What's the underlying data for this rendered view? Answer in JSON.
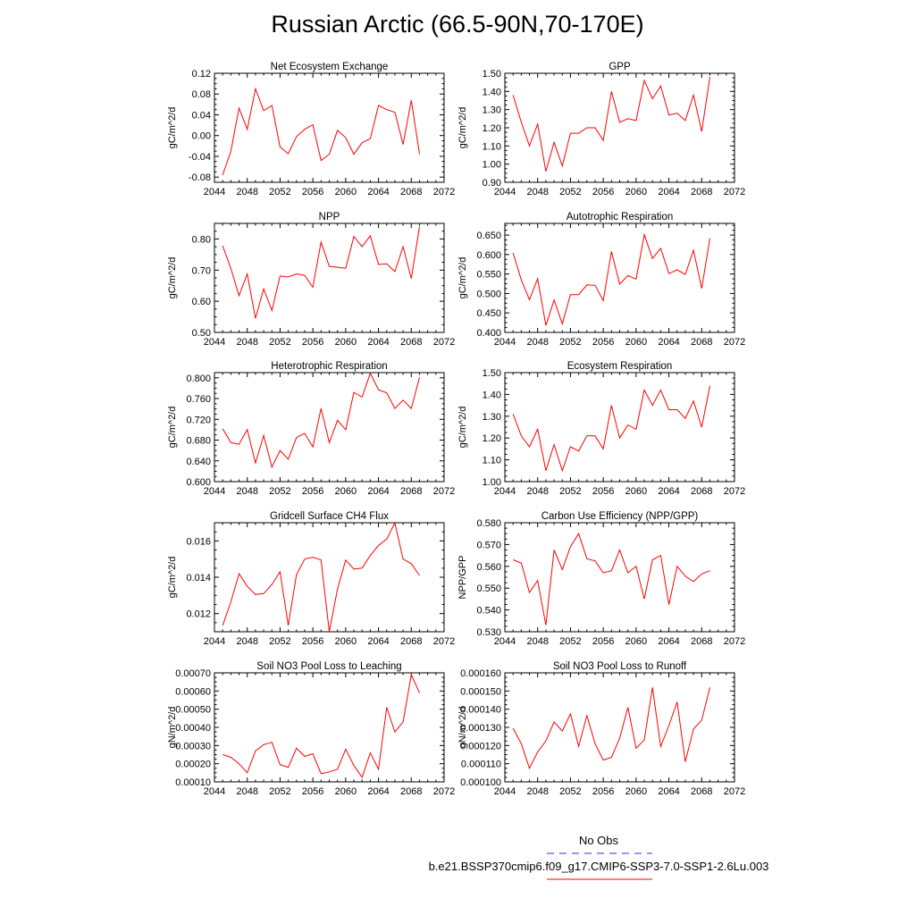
{
  "title": "Russian Arctic (66.5-90N,70-170E)",
  "colors": {
    "series": "#ff0000",
    "obs": "#3333cc",
    "axis": "#000000"
  },
  "legend": {
    "obs_label": "No Obs",
    "run_label": "b.e21.BSSP370cmip6.f09_g17.CMIP6-SSP3-7.0-SSP1-2.6Lu.003"
  },
  "chart_data": [
    {
      "type": "line",
      "title": "Net Ecosystem Exchange",
      "ylabel": "gC/m^2/d",
      "xlabel": "",
      "xlim": [
        2044,
        2072
      ],
      "ylim": [
        -0.09,
        0.12
      ],
      "xticks": [
        2044,
        2048,
        2052,
        2056,
        2060,
        2064,
        2068,
        2072
      ],
      "yticks": [
        -0.08,
        -0.04,
        0.0,
        0.04,
        0.08,
        0.12
      ],
      "ydec": 2,
      "x": [
        2045,
        2046,
        2047,
        2048,
        2049,
        2050,
        2051,
        2052,
        2053,
        2054,
        2055,
        2056,
        2057,
        2058,
        2059,
        2060,
        2061,
        2062,
        2063,
        2064,
        2065,
        2066,
        2067,
        2068,
        2069
      ],
      "series": [
        {
          "values": [
            -0.076,
            -0.03,
            0.053,
            0.012,
            0.09,
            0.048,
            0.058,
            -0.022,
            -0.035,
            -0.002,
            0.012,
            0.021,
            -0.048,
            -0.036,
            0.01,
            -0.004,
            -0.036,
            -0.014,
            -0.006,
            0.058,
            0.05,
            0.045,
            -0.017,
            0.068,
            -0.036
          ]
        }
      ]
    },
    {
      "type": "line",
      "title": "GPP",
      "ylabel": "gC/m^2/d",
      "xlabel": "",
      "xlim": [
        2044,
        2072
      ],
      "ylim": [
        0.9,
        1.5
      ],
      "xticks": [
        2044,
        2048,
        2052,
        2056,
        2060,
        2064,
        2068,
        2072
      ],
      "yticks": [
        0.9,
        1.0,
        1.1,
        1.2,
        1.3,
        1.4,
        1.5
      ],
      "ydec": 2,
      "x": [
        2045,
        2046,
        2047,
        2048,
        2049,
        2050,
        2051,
        2052,
        2053,
        2054,
        2055,
        2056,
        2057,
        2058,
        2059,
        2060,
        2061,
        2062,
        2063,
        2064,
        2065,
        2066,
        2067,
        2068,
        2069
      ],
      "series": [
        {
          "values": [
            1.38,
            1.23,
            1.1,
            1.22,
            0.96,
            1.12,
            0.99,
            1.17,
            1.17,
            1.2,
            1.2,
            1.13,
            1.4,
            1.23,
            1.25,
            1.24,
            1.46,
            1.36,
            1.43,
            1.27,
            1.28,
            1.24,
            1.38,
            1.18,
            1.48
          ]
        }
      ]
    },
    {
      "type": "line",
      "title": "NPP",
      "ylabel": "gC/m^2/d",
      "xlabel": "",
      "xlim": [
        2044,
        2072
      ],
      "ylim": [
        0.5,
        0.85
      ],
      "xticks": [
        2044,
        2048,
        2052,
        2056,
        2060,
        2064,
        2068,
        2072
      ],
      "yticks": [
        0.5,
        0.6,
        0.7,
        0.8
      ],
      "ydec": 2,
      "x": [
        2045,
        2046,
        2047,
        2048,
        2049,
        2050,
        2051,
        2052,
        2053,
        2054,
        2055,
        2056,
        2057,
        2058,
        2059,
        2060,
        2061,
        2062,
        2063,
        2064,
        2065,
        2066,
        2067,
        2068,
        2069
      ],
      "series": [
        {
          "values": [
            0.778,
            0.705,
            0.618,
            0.688,
            0.545,
            0.64,
            0.57,
            0.681,
            0.678,
            0.688,
            0.683,
            0.645,
            0.79,
            0.712,
            0.709,
            0.706,
            0.808,
            0.775,
            0.81,
            0.718,
            0.72,
            0.695,
            0.775,
            0.673,
            0.84
          ]
        }
      ]
    },
    {
      "type": "line",
      "title": "Autotrophic Respiration",
      "ylabel": "gC/m^2/d",
      "xlabel": "",
      "xlim": [
        2044,
        2072
      ],
      "ylim": [
        0.4,
        0.68
      ],
      "xticks": [
        2044,
        2048,
        2052,
        2056,
        2060,
        2064,
        2068,
        2072
      ],
      "yticks": [
        0.4,
        0.45,
        0.5,
        0.55,
        0.6,
        0.65
      ],
      "ydec": 3,
      "x": [
        2045,
        2046,
        2047,
        2048,
        2049,
        2050,
        2051,
        2052,
        2053,
        2054,
        2055,
        2056,
        2057,
        2058,
        2059,
        2060,
        2061,
        2062,
        2063,
        2064,
        2065,
        2066,
        2067,
        2068,
        2069
      ],
      "series": [
        {
          "values": [
            0.604,
            0.535,
            0.484,
            0.538,
            0.418,
            0.483,
            0.422,
            0.497,
            0.497,
            0.522,
            0.521,
            0.482,
            0.608,
            0.524,
            0.546,
            0.537,
            0.651,
            0.59,
            0.616,
            0.551,
            0.561,
            0.549,
            0.611,
            0.513,
            0.642
          ]
        }
      ]
    },
    {
      "type": "line",
      "title": "Heterotrophic Respiration",
      "ylabel": "gC/m^2/d",
      "xlabel": "",
      "xlim": [
        2044,
        2072
      ],
      "ylim": [
        0.6,
        0.81
      ],
      "xticks": [
        2044,
        2048,
        2052,
        2056,
        2060,
        2064,
        2068,
        2072
      ],
      "yticks": [
        0.6,
        0.64,
        0.68,
        0.72,
        0.76,
        0.8
      ],
      "ydec": 3,
      "x": [
        2045,
        2046,
        2047,
        2048,
        2049,
        2050,
        2051,
        2052,
        2053,
        2054,
        2055,
        2056,
        2057,
        2058,
        2059,
        2060,
        2061,
        2062,
        2063,
        2064,
        2065,
        2066,
        2067,
        2068,
        2069
      ],
      "series": [
        {
          "values": [
            0.702,
            0.675,
            0.672,
            0.7,
            0.636,
            0.689,
            0.628,
            0.66,
            0.643,
            0.685,
            0.693,
            0.667,
            0.741,
            0.675,
            0.718,
            0.7,
            0.772,
            0.763,
            0.809,
            0.777,
            0.771,
            0.741,
            0.757,
            0.741,
            0.801
          ]
        }
      ]
    },
    {
      "type": "line",
      "title": "Ecosystem Respiration",
      "ylabel": "gC/m^2/d",
      "xlabel": "",
      "xlim": [
        2044,
        2072
      ],
      "ylim": [
        1.0,
        1.5
      ],
      "xticks": [
        2044,
        2048,
        2052,
        2056,
        2060,
        2064,
        2068,
        2072
      ],
      "yticks": [
        1.0,
        1.1,
        1.2,
        1.3,
        1.4,
        1.5
      ],
      "ydec": 2,
      "x": [
        2045,
        2046,
        2047,
        2048,
        2049,
        2050,
        2051,
        2052,
        2053,
        2054,
        2055,
        2056,
        2057,
        2058,
        2059,
        2060,
        2061,
        2062,
        2063,
        2064,
        2065,
        2066,
        2067,
        2068,
        2069
      ],
      "series": [
        {
          "values": [
            1.31,
            1.21,
            1.16,
            1.24,
            1.05,
            1.17,
            1.05,
            1.16,
            1.14,
            1.21,
            1.21,
            1.15,
            1.35,
            1.2,
            1.26,
            1.24,
            1.42,
            1.35,
            1.42,
            1.33,
            1.33,
            1.29,
            1.37,
            1.25,
            1.44
          ]
        }
      ]
    },
    {
      "type": "line",
      "title": "Gridcell Surface CH4 Flux",
      "ylabel": "gC/m^2/d",
      "xlabel": "",
      "xlim": [
        2044,
        2072
      ],
      "ylim": [
        0.011,
        0.017
      ],
      "xticks": [
        2044,
        2048,
        2052,
        2056,
        2060,
        2064,
        2068,
        2072
      ],
      "yticks": [
        0.012,
        0.014,
        0.016
      ],
      "ydec": 3,
      "x": [
        2045,
        2046,
        2047,
        2048,
        2049,
        2050,
        2051,
        2052,
        2053,
        2054,
        2055,
        2056,
        2057,
        2058,
        2059,
        2060,
        2061,
        2062,
        2063,
        2064,
        2065,
        2066,
        2067,
        2068,
        2069
      ],
      "series": [
        {
          "values": [
            0.01135,
            0.01265,
            0.0142,
            0.0135,
            0.01305,
            0.0131,
            0.0136,
            0.0143,
            0.01135,
            0.01415,
            0.015,
            0.0151,
            0.01495,
            0.011,
            0.01335,
            0.01495,
            0.01445,
            0.0145,
            0.0152,
            0.01575,
            0.0161,
            0.017,
            0.015,
            0.01475,
            0.0141
          ]
        }
      ]
    },
    {
      "type": "line",
      "title": "Carbon Use Efficiency (NPP/GPP)",
      "ylabel": "NPP/GPP",
      "xlabel": "",
      "xlim": [
        2044,
        2072
      ],
      "ylim": [
        0.53,
        0.58
      ],
      "xticks": [
        2044,
        2048,
        2052,
        2056,
        2060,
        2064,
        2068,
        2072
      ],
      "yticks": [
        0.53,
        0.54,
        0.55,
        0.56,
        0.57,
        0.58
      ],
      "ydec": 3,
      "x": [
        2045,
        2046,
        2047,
        2048,
        2049,
        2050,
        2051,
        2052,
        2053,
        2054,
        2055,
        2056,
        2057,
        2058,
        2059,
        2060,
        2061,
        2062,
        2063,
        2064,
        2065,
        2066,
        2067,
        2068,
        2069
      ],
      "series": [
        {
          "values": [
            0.563,
            0.5615,
            0.548,
            0.5535,
            0.533,
            0.5675,
            0.5585,
            0.569,
            0.575,
            0.5635,
            0.5625,
            0.557,
            0.558,
            0.5675,
            0.557,
            0.56,
            0.545,
            0.563,
            0.565,
            0.5425,
            0.56,
            0.5555,
            0.553,
            0.5565,
            0.558
          ]
        }
      ]
    },
    {
      "type": "line",
      "title": "Soil NO3 Pool Loss to Leaching",
      "ylabel": "gN/m^2/d",
      "xlabel": "",
      "xlim": [
        2044,
        2072
      ],
      "ylim": [
        0.0001,
        0.0007
      ],
      "xticks": [
        2044,
        2048,
        2052,
        2056,
        2060,
        2064,
        2068,
        2072
      ],
      "yticks": [
        0.0001,
        0.0002,
        0.0003,
        0.0004,
        0.0005,
        0.0006,
        0.0007
      ],
      "ydec": 5,
      "x": [
        2045,
        2046,
        2047,
        2048,
        2049,
        2050,
        2051,
        2052,
        2053,
        2054,
        2055,
        2056,
        2057,
        2058,
        2059,
        2060,
        2061,
        2062,
        2063,
        2064,
        2065,
        2066,
        2067,
        2068,
        2069
      ],
      "series": [
        {
          "values": [
            0.00025,
            0.000235,
            0.0002,
            0.00015,
            0.00027,
            0.000305,
            0.000318,
            0.000195,
            0.00018,
            0.000285,
            0.00024,
            0.000255,
            0.000145,
            0.000155,
            0.00017,
            0.00028,
            0.00019,
            0.000125,
            0.00026,
            0.00017,
            0.00051,
            0.000375,
            0.00043,
            0.00069,
            0.00059
          ]
        }
      ]
    },
    {
      "type": "line",
      "title": "Soil NO3 Pool Loss to Runoff",
      "ylabel": "gN/m^2/d",
      "xlabel": "",
      "xlim": [
        2044,
        2072
      ],
      "ylim": [
        0.0001,
        0.00016
      ],
      "xticks": [
        2044,
        2048,
        2052,
        2056,
        2060,
        2064,
        2068,
        2072
      ],
      "yticks": [
        0.0001,
        0.00011,
        0.00012,
        0.00013,
        0.00014,
        0.00015,
        0.00016
      ],
      "ydec": 6,
      "x": [
        2045,
        2046,
        2047,
        2048,
        2049,
        2050,
        2051,
        2052,
        2053,
        2054,
        2055,
        2056,
        2057,
        2058,
        2059,
        2060,
        2061,
        2062,
        2063,
        2064,
        2065,
        2066,
        2067,
        2068,
        2069
      ],
      "series": [
        {
          "values": [
            0.0001295,
            0.000121,
            0.0001075,
            0.0001165,
            0.0001225,
            0.000133,
            0.000128,
            0.0001375,
            0.0001195,
            0.0001365,
            0.000121,
            0.000112,
            0.0001135,
            0.000124,
            0.000141,
            0.0001185,
            0.000123,
            0.000152,
            0.0001195,
            0.000131,
            0.000144,
            0.000111,
            0.000129,
            0.000134,
            0.000152
          ]
        }
      ]
    }
  ]
}
